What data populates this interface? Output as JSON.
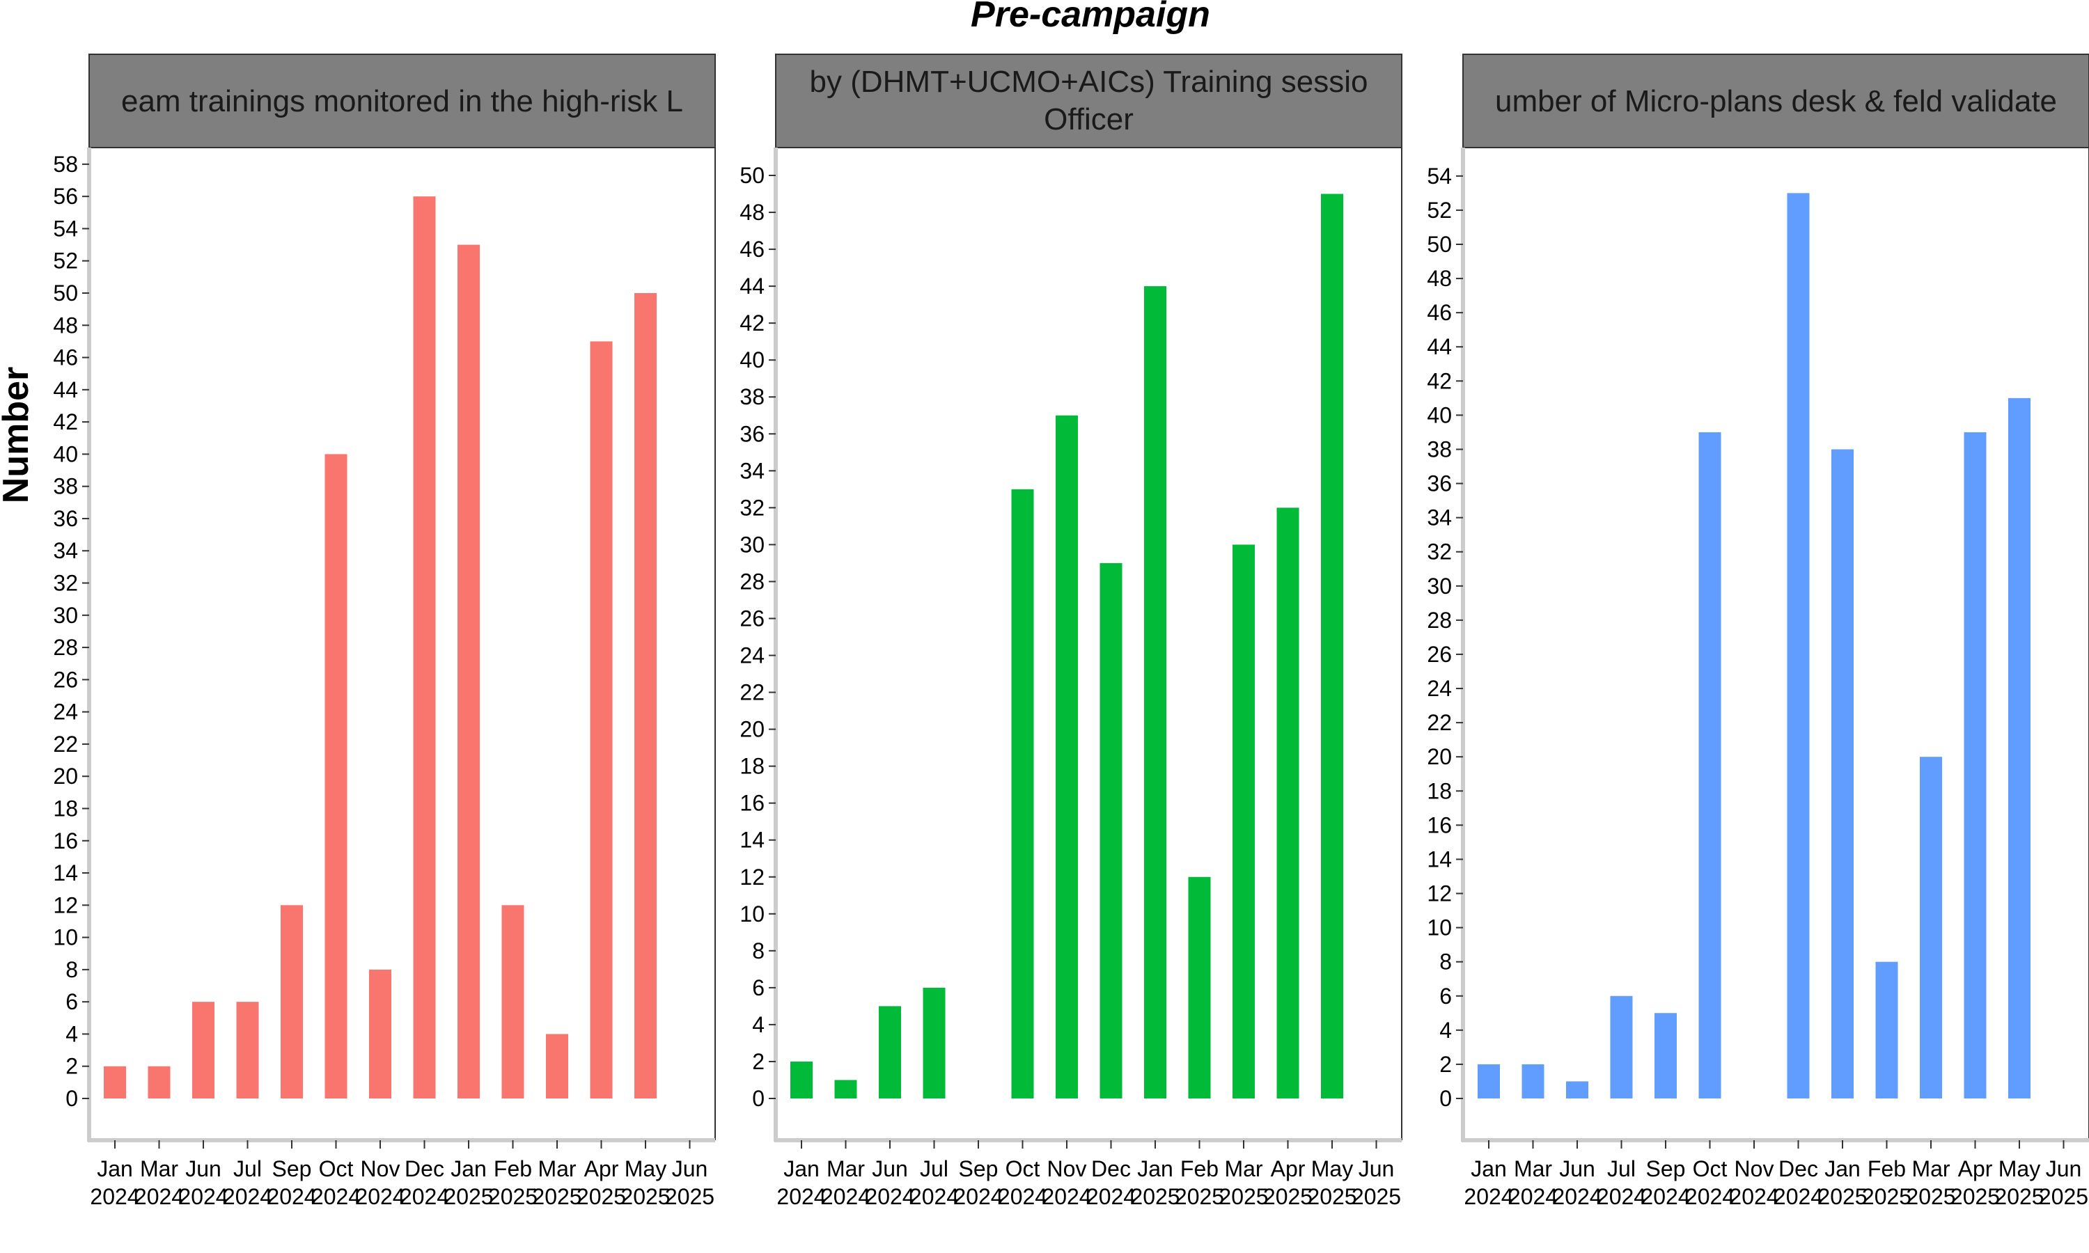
{
  "title": "Pre-campaign",
  "ylabel": "Number",
  "colors": {
    "strip_bg": "#7f7f7f",
    "axis": "#cccccc",
    "panel_border": "#333333"
  },
  "chart_data": [
    {
      "type": "bar",
      "strip": [
        "eam trainings monitored in the high-risk L"
      ],
      "color": "#F8766D",
      "categories": [
        "Jan 2024",
        "Mar 2024",
        "Jun 2024",
        "Jul 2024",
        "Sep 2024",
        "Oct 2024",
        "Nov 2024",
        "Dec 2024",
        "Jan 2025",
        "Feb 2025",
        "Mar 2025",
        "Apr 2025",
        "May 2025",
        "Jun 2025"
      ],
      "tick_lines": [
        [
          "Jan",
          "2024"
        ],
        [
          "Mar",
          "2024"
        ],
        [
          "Jun",
          "2024"
        ],
        [
          "Jul",
          "2024"
        ],
        [
          "Sep",
          "2024"
        ],
        [
          "Oct",
          "2024"
        ],
        [
          "Nov",
          "2024"
        ],
        [
          "Dec",
          "2024"
        ],
        [
          "Jan",
          "2025"
        ],
        [
          "Feb",
          "2025"
        ],
        [
          "Mar",
          "2025"
        ],
        [
          "Apr",
          "2025"
        ],
        [
          "May",
          "2025"
        ],
        [
          "Jun",
          "2025"
        ]
      ],
      "values": [
        2,
        2,
        6,
        6,
        12,
        40,
        8,
        56,
        53,
        12,
        4,
        47,
        50,
        null
      ],
      "ylim": [
        0,
        58
      ],
      "yticks": [
        "0",
        "2",
        "4",
        "6",
        "8",
        "10",
        "12",
        "14",
        "16",
        "18",
        "20",
        "22",
        "24",
        "26",
        "28",
        "30",
        "32",
        "34",
        "36",
        "38",
        "40",
        "42",
        "44",
        "46",
        "48",
        "50",
        "52",
        "54",
        "56",
        "58"
      ]
    },
    {
      "type": "bar",
      "strip": [
        "by (DHMT+UCMO+AICs) Training sessio",
        "Officer"
      ],
      "color": "#00BA38",
      "categories": [
        "Jan 2024",
        "Mar 2024",
        "Jun 2024",
        "Jul 2024",
        "Sep 2024",
        "Oct 2024",
        "Nov 2024",
        "Dec 2024",
        "Jan 2025",
        "Feb 2025",
        "Mar 2025",
        "Apr 2025",
        "May 2025",
        "Jun 2025"
      ],
      "tick_lines": [
        [
          "Jan",
          "2024"
        ],
        [
          "Mar",
          "2024"
        ],
        [
          "Jun",
          "2024"
        ],
        [
          "Jul",
          "2024"
        ],
        [
          "Sep",
          "2024"
        ],
        [
          "Oct",
          "2024"
        ],
        [
          "Nov",
          "2024"
        ],
        [
          "Dec",
          "2024"
        ],
        [
          "Jan",
          "2025"
        ],
        [
          "Feb",
          "2025"
        ],
        [
          "Mar",
          "2025"
        ],
        [
          "Apr",
          "2025"
        ],
        [
          "May",
          "2025"
        ],
        [
          "Jun",
          "2025"
        ]
      ],
      "values": [
        2,
        1,
        5,
        6,
        null,
        33,
        37,
        29,
        44,
        12,
        30,
        32,
        49,
        null
      ],
      "ylim": [
        0,
        50
      ],
      "yticks": [
        "0",
        "2",
        "4",
        "6",
        "8",
        "10",
        "12",
        "14",
        "16",
        "18",
        "20",
        "22",
        "24",
        "26",
        "28",
        "30",
        "32",
        "34",
        "36",
        "38",
        "40",
        "42",
        "44",
        "46",
        "48",
        "50"
      ]
    },
    {
      "type": "bar",
      "strip": [
        "umber of Micro-plans desk & feld validate"
      ],
      "color": "#619CFF",
      "categories": [
        "Jan 2024",
        "Mar 2024",
        "Jun 2024",
        "Jul 2024",
        "Sep 2024",
        "Oct 2024",
        "Nov 2024",
        "Dec 2024",
        "Jan 2025",
        "Feb 2025",
        "Mar 2025",
        "Apr 2025",
        "May 2025",
        "Jun 2025"
      ],
      "tick_lines": [
        [
          "Jan",
          "2024"
        ],
        [
          "Mar",
          "2024"
        ],
        [
          "Jun",
          "2024"
        ],
        [
          "Jul",
          "2024"
        ],
        [
          "Sep",
          "2024"
        ],
        [
          "Oct",
          "2024"
        ],
        [
          "Nov",
          "2024"
        ],
        [
          "Dec",
          "2024"
        ],
        [
          "Jan",
          "2025"
        ],
        [
          "Feb",
          "2025"
        ],
        [
          "Mar",
          "2025"
        ],
        [
          "Apr",
          "2025"
        ],
        [
          "May",
          "2025"
        ],
        [
          "Jun",
          "2025"
        ]
      ],
      "values": [
        2,
        2,
        1,
        6,
        5,
        39,
        null,
        53,
        38,
        8,
        20,
        39,
        41,
        null
      ],
      "ylim": [
        0,
        54
      ],
      "yticks": [
        "0",
        "2",
        "4",
        "6",
        "8",
        "10",
        "12",
        "14",
        "16",
        "18",
        "20",
        "22",
        "24",
        "26",
        "28",
        "30",
        "32",
        "34",
        "36",
        "38",
        "40",
        "42",
        "44",
        "46",
        "48",
        "50",
        "52",
        "54"
      ]
    }
  ]
}
